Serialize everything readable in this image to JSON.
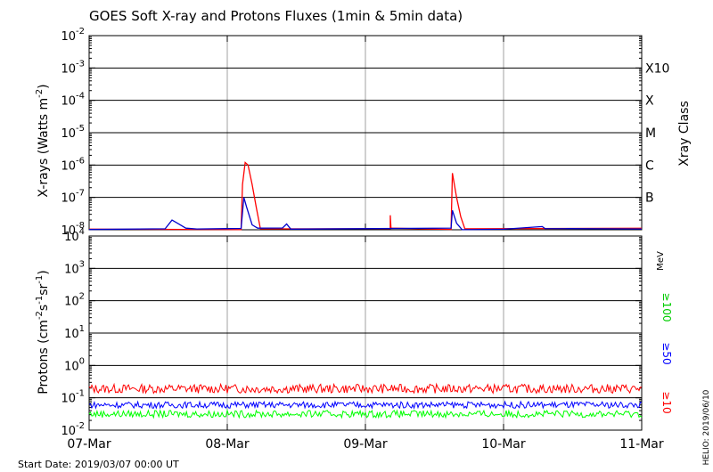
{
  "title": "GOES Soft X-ray and Protons Fluxes   (1min & 5min data)",
  "footer": "Start Date: 2019/03/07 00:00 UT",
  "side_credit": "HELIO: 2019/06/10",
  "colors": {
    "xray_long": "#ff0000",
    "xray_short": "#0000cc",
    "proton_10": "#ff0000",
    "proton_50": "#0000ff",
    "proton_100": "#00ff00",
    "grid": "#000000",
    "day_line": "#a0a0a0"
  },
  "chart_data": [
    {
      "type": "line",
      "name": "xray",
      "ylabel": "X-rays (Watts m",
      "ylabel_sup": "-2",
      "ylabel_tail": ")",
      "y_scale": "log",
      "ylim_exp": [
        -8,
        -2
      ],
      "y_tick_labels": [
        {
          "base": "10",
          "exp": "-8"
        },
        {
          "base": "10",
          "exp": "-7"
        },
        {
          "base": "10",
          "exp": "-6"
        },
        {
          "base": "10",
          "exp": "-5"
        },
        {
          "base": "10",
          "exp": "-4"
        },
        {
          "base": "10",
          "exp": "-3"
        },
        {
          "base": "10",
          "exp": "-2"
        }
      ],
      "right_axis_title": "Xray Class",
      "class_labels": [
        {
          "label": "B",
          "exp": -7
        },
        {
          "label": "C",
          "exp": -6
        },
        {
          "label": "M",
          "exp": -5
        },
        {
          "label": "X",
          "exp": -4
        },
        {
          "label": "X10",
          "exp": -3
        }
      ],
      "xlim_days": [
        0,
        4
      ],
      "series": [
        {
          "name": "long",
          "points": [
            [
              0,
              -8
            ],
            [
              1.1,
              -8
            ],
            [
              1.11,
              -6.6
            ],
            [
              1.13,
              -5.92
            ],
            [
              1.15,
              -6.0
            ],
            [
              1.18,
              -6.6
            ],
            [
              1.21,
              -7.3
            ],
            [
              1.24,
              -8
            ],
            [
              2.18,
              -8
            ],
            [
              2.18,
              -7.55
            ],
            [
              2.185,
              -8
            ],
            [
              2.62,
              -8
            ],
            [
              2.63,
              -6.25
            ],
            [
              2.66,
              -7.0
            ],
            [
              2.69,
              -7.6
            ],
            [
              2.72,
              -8
            ],
            [
              4,
              -8
            ]
          ]
        },
        {
          "name": "short",
          "points": [
            [
              0,
              -8
            ],
            [
              0.55,
              -8
            ],
            [
              0.6,
              -7.7
            ],
            [
              0.64,
              -7.8
            ],
            [
              0.7,
              -7.95
            ],
            [
              0.78,
              -8.0
            ],
            [
              1.1,
              -8
            ],
            [
              1.12,
              -7.0
            ],
            [
              1.14,
              -7.3
            ],
            [
              1.18,
              -7.85
            ],
            [
              1.22,
              -8
            ],
            [
              1.4,
              -8
            ],
            [
              1.43,
              -7.82
            ],
            [
              1.46,
              -8
            ],
            [
              2.62,
              -8
            ],
            [
              2.63,
              -7.4
            ],
            [
              2.66,
              -7.8
            ],
            [
              2.7,
              -8
            ],
            [
              3.0,
              -8
            ],
            [
              3.28,
              -7.9
            ],
            [
              3.3,
              -8
            ],
            [
              4,
              -8
            ]
          ]
        }
      ]
    },
    {
      "type": "line",
      "name": "protons",
      "ylabel": "Protons (cm",
      "ylabel_sup1": "-2",
      "ylabel_mid1": "s",
      "ylabel_sup2": "-1",
      "ylabel_mid2": "sr",
      "ylabel_sup3": "-1",
      "ylabel_tail": ")",
      "y_scale": "log",
      "ylim_exp": [
        -2,
        4
      ],
      "y_tick_labels": [
        {
          "base": "10",
          "exp": "-2"
        },
        {
          "base": "10",
          "exp": "-1"
        },
        {
          "base": "10",
          "exp": "0"
        },
        {
          "base": "10",
          "exp": "1"
        },
        {
          "base": "10",
          "exp": "2"
        },
        {
          "base": "10",
          "exp": "3"
        },
        {
          "base": "10",
          "exp": "4"
        }
      ],
      "threshold_exp": 1,
      "unit_label": "MeV",
      "x_tick_labels": [
        "07-Mar",
        "08-Mar",
        "09-Mar",
        "10-Mar",
        "11-Mar"
      ],
      "series": [
        {
          "name": "≥10",
          "mean_exp": -0.72,
          "spread": 0.14
        },
        {
          "name": "≥50",
          "mean_exp": -1.22,
          "spread": 0.1
        },
        {
          "name": "≥100",
          "mean_exp": -1.5,
          "spread": 0.11
        }
      ]
    }
  ]
}
